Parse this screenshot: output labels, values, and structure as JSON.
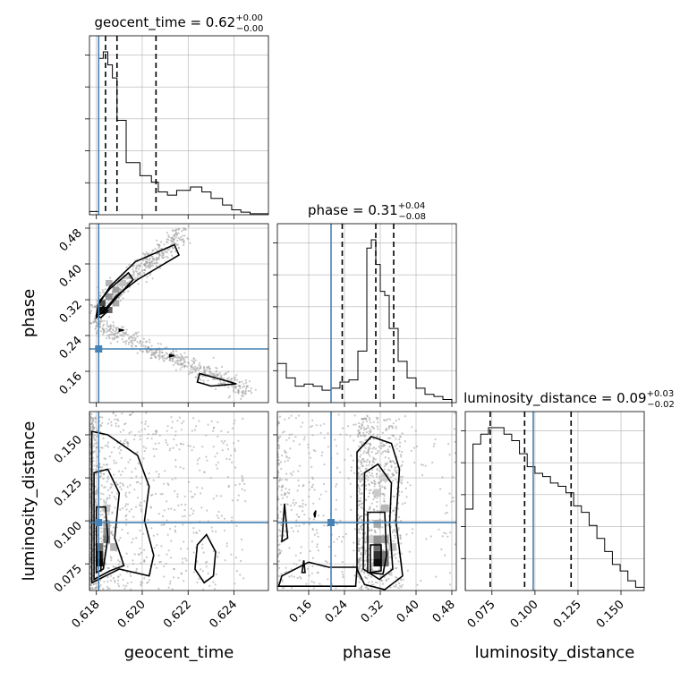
{
  "truth_color": "#4682b4",
  "chart_data": {
    "type": "corner",
    "parameters": [
      "geocent_time",
      "phase",
      "luminosity_distance"
    ],
    "truths": {
      "geocent_time": 0.6181,
      "phase": 0.21,
      "luminosity_distance": 0.099
    },
    "ranges": {
      "geocent_time": [
        0.6177,
        0.6255
      ],
      "phase": [
        0.09,
        0.49
      ],
      "luminosity_distance": [
        0.0595,
        0.1635
      ]
    },
    "ticks": {
      "geocent_time": [
        "0.618",
        "0.620",
        "0.622",
        "0.624"
      ],
      "phase": [
        "0.16",
        "0.24",
        "0.32",
        "0.40",
        "0.48"
      ],
      "luminosity_distance": [
        "0.075",
        "0.100",
        "0.125",
        "0.150"
      ]
    },
    "titles": [
      {
        "param": "geocent_time",
        "label": "geocent_time = 0.62",
        "plus": "+0.00",
        "minus": "−0.00"
      },
      {
        "param": "phase",
        "label": "phase = 0.31",
        "plus": "+0.04",
        "minus": "−0.08"
      },
      {
        "param": "luminosity_distance",
        "label": "luminosity_distance = 0.09",
        "plus": "+0.03",
        "minus": "−0.02"
      }
    ],
    "quantiles": {
      "geocent_time": [
        0.6184,
        0.6189,
        0.6206
      ],
      "phase": [
        0.235,
        0.31,
        0.35
      ],
      "luminosity_distance": [
        0.074,
        0.094,
        0.121
      ]
    },
    "histograms": {
      "geocent_time": {
        "edges": [
          0.6177,
          0.6181,
          0.6183,
          0.6185,
          0.6187,
          0.6189,
          0.6193,
          0.6199,
          0.6204,
          0.6207,
          0.6211,
          0.6215,
          0.6221,
          0.6226,
          0.623,
          0.6235,
          0.6239,
          0.6243,
          0.6247,
          0.6255
        ],
        "counts": [
          1.0,
          48.0,
          50.0,
          46.0,
          42.0,
          29.0,
          16.0,
          12.0,
          10.0,
          7.0,
          6.0,
          7.5,
          8.5,
          7.0,
          5.0,
          3.0,
          1.5,
          0.8,
          0.3
        ]
      },
      "phase": {
        "edges": [
          0.09,
          0.11,
          0.13,
          0.15,
          0.17,
          0.19,
          0.21,
          0.23,
          0.25,
          0.27,
          0.29,
          0.3,
          0.31,
          0.32,
          0.33,
          0.34,
          0.36,
          0.38,
          0.4,
          0.42,
          0.44,
          0.46,
          0.48
        ],
        "counts": [
          19,
          12,
          8,
          9,
          8,
          6,
          7,
          10,
          11,
          25,
          75,
          79,
          67,
          54,
          52,
          36,
          20,
          12,
          7,
          4,
          3,
          1.5
        ]
      },
      "luminosity_distance": {
        "edges": [
          0.0595,
          0.064,
          0.0685,
          0.073,
          0.0775,
          0.082,
          0.0865,
          0.091,
          0.0955,
          0.1,
          0.1045,
          0.109,
          0.1135,
          0.118,
          0.1225,
          0.127,
          0.1315,
          0.136,
          0.1405,
          0.145,
          0.1495,
          0.154,
          0.1585,
          0.1635
        ],
        "counts": [
          25,
          45,
          48,
          50,
          50,
          48,
          46,
          42,
          38,
          36,
          35,
          33,
          32,
          30,
          26,
          24,
          20,
          16,
          12,
          8,
          6,
          3,
          1
        ]
      }
    },
    "pairs": [
      {
        "x": "geocent_time",
        "y": "phase",
        "density": [
          {
            "x": 0.6181,
            "y": 0.29,
            "w": 0.0003,
            "h": 0.014,
            "v": 0.95
          },
          {
            "x": 0.6181,
            "y": 0.305,
            "w": 0.0003,
            "h": 0.014,
            "v": 0.75
          },
          {
            "x": 0.6184,
            "y": 0.29,
            "w": 0.0003,
            "h": 0.014,
            "v": 0.65
          },
          {
            "x": 0.6184,
            "y": 0.32,
            "w": 0.0003,
            "h": 0.014,
            "v": 0.45
          },
          {
            "x": 0.6187,
            "y": 0.335,
            "w": 0.0003,
            "h": 0.014,
            "v": 0.4
          },
          {
            "x": 0.6187,
            "y": 0.305,
            "w": 0.0003,
            "h": 0.014,
            "v": 0.35
          },
          {
            "x": 0.619,
            "y": 0.35,
            "w": 0.0003,
            "h": 0.014,
            "v": 0.25
          },
          {
            "x": 0.6184,
            "y": 0.35,
            "w": 0.0003,
            "h": 0.014,
            "v": 0.3
          }
        ],
        "contours": [
          [
            [
              0.618,
              0.28
            ],
            [
              0.6181,
              0.31
            ],
            [
              0.6186,
              0.35
            ],
            [
              0.6197,
              0.405
            ],
            [
              0.6214,
              0.443
            ],
            [
              0.6216,
              0.42
            ],
            [
              0.6198,
              0.365
            ],
            [
              0.6189,
              0.33
            ],
            [
              0.6184,
              0.3
            ],
            [
              0.618,
              0.28
            ]
          ],
          [
            [
              0.618,
              0.285
            ],
            [
              0.6181,
              0.315
            ],
            [
              0.6186,
              0.345
            ],
            [
              0.6194,
              0.38
            ],
            [
              0.6196,
              0.365
            ],
            [
              0.6188,
              0.32
            ],
            [
              0.6183,
              0.29
            ],
            [
              0.618,
              0.285
            ]
          ],
          [
            [
              0.618,
              0.285
            ],
            [
              0.6183,
              0.305
            ],
            [
              0.6185,
              0.295
            ],
            [
              0.6182,
              0.28
            ],
            [
              0.618,
              0.285
            ]
          ],
          [
            [
              0.619,
              0.254
            ],
            [
              0.6192,
              0.252
            ],
            [
              0.619,
              0.25
            ],
            [
              0.619,
              0.254
            ]
          ],
          [
            [
              0.6212,
              0.197
            ],
            [
              0.6214,
              0.195
            ],
            [
              0.6212,
              0.193
            ],
            [
              0.6212,
              0.197
            ]
          ],
          [
            [
              0.6225,
              0.155
            ],
            [
              0.6235,
              0.141
            ],
            [
              0.6241,
              0.132
            ],
            [
              0.623,
              0.127
            ],
            [
              0.6224,
              0.136
            ],
            [
              0.6225,
              0.155
            ]
          ]
        ],
        "scatter": {
          "seed": 11,
          "count": 950,
          "bands": [
            {
              "x0": 0.6177,
              "x1": 0.6247,
              "y0": 0.27,
              "y1": 0.115,
              "sx": 0.00012,
              "sy": 0.01,
              "weight": 0.55
            },
            {
              "x0": 0.618,
              "x1": 0.6218,
              "y0": 0.3,
              "y1": 0.47,
              "sx": 0.0002,
              "sy": 0.012,
              "weight": 0.45
            }
          ]
        }
      },
      {
        "x": "geocent_time",
        "y": "luminosity_distance",
        "density": [
          {
            "x": 0.618,
            "y": 0.0735,
            "w": 0.0003,
            "h": 0.0045,
            "v": 1.0
          },
          {
            "x": 0.618,
            "y": 0.078,
            "w": 0.0003,
            "h": 0.0045,
            "v": 0.85
          },
          {
            "x": 0.618,
            "y": 0.0825,
            "w": 0.0003,
            "h": 0.0045,
            "v": 0.6
          },
          {
            "x": 0.6183,
            "y": 0.087,
            "w": 0.0003,
            "h": 0.0045,
            "v": 0.55
          },
          {
            "x": 0.6183,
            "y": 0.0915,
            "w": 0.0003,
            "h": 0.0045,
            "v": 0.45
          },
          {
            "x": 0.6183,
            "y": 0.096,
            "w": 0.0003,
            "h": 0.0045,
            "v": 0.35
          },
          {
            "x": 0.6183,
            "y": 0.105,
            "w": 0.0003,
            "h": 0.0045,
            "v": 0.25
          },
          {
            "x": 0.6186,
            "y": 0.0825,
            "w": 0.0003,
            "h": 0.0045,
            "v": 0.3
          }
        ],
        "contours": [
          [
            [
              0.6178,
              0.064
            ],
            [
              0.6178,
              0.152
            ],
            [
              0.6185,
              0.15
            ],
            [
              0.6198,
              0.138
            ],
            [
              0.6203,
              0.12
            ],
            [
              0.6201,
              0.1
            ],
            [
              0.6205,
              0.08
            ],
            [
              0.6203,
              0.068
            ],
            [
              0.619,
              0.072
            ],
            [
              0.6181,
              0.066
            ],
            [
              0.6178,
              0.064
            ]
          ],
          [
            [
              0.6179,
              0.066
            ],
            [
              0.6179,
              0.128
            ],
            [
              0.6185,
              0.13
            ],
            [
              0.619,
              0.116
            ],
            [
              0.6188,
              0.09
            ],
            [
              0.6192,
              0.074
            ],
            [
              0.6186,
              0.071
            ],
            [
              0.6179,
              0.066
            ]
          ],
          [
            [
              0.618,
              0.07
            ],
            [
              0.618,
              0.108
            ],
            [
              0.6184,
              0.108
            ],
            [
              0.6185,
              0.09
            ],
            [
              0.6183,
              0.072
            ],
            [
              0.618,
              0.07
            ]
          ],
          [
            [
              0.618,
              0.07
            ],
            [
              0.618,
              0.082
            ],
            [
              0.6182,
              0.082
            ],
            [
              0.6182,
              0.071
            ],
            [
              0.618,
              0.07
            ]
          ],
          [
            [
              0.6224,
              0.086
            ],
            [
              0.6223,
              0.072
            ],
            [
              0.6227,
              0.064
            ],
            [
              0.6231,
              0.068
            ],
            [
              0.6232,
              0.082
            ],
            [
              0.6228,
              0.092
            ],
            [
              0.6224,
              0.086
            ]
          ]
        ],
        "scatter": {
          "seed": 23,
          "count": 1050,
          "bands": [
            {
              "x0": 0.6177,
              "x1": 0.6245,
              "y0": 0.06,
              "y1": 0.163,
              "sx": 0.0,
              "sy": 0.0,
              "weight": 1.0,
              "uniform": true,
              "taper": 3.2
            }
          ]
        }
      },
      {
        "x": "phase",
        "y": "luminosity_distance",
        "density": [
          {
            "x": 0.305,
            "y": 0.0735,
            "w": 0.017,
            "h": 0.0045,
            "v": 1.0
          },
          {
            "x": 0.305,
            "y": 0.078,
            "w": 0.017,
            "h": 0.0045,
            "v": 0.85
          },
          {
            "x": 0.322,
            "y": 0.0735,
            "w": 0.017,
            "h": 0.0045,
            "v": 0.6
          },
          {
            "x": 0.322,
            "y": 0.078,
            "w": 0.017,
            "h": 0.0045,
            "v": 0.55
          },
          {
            "x": 0.305,
            "y": 0.0825,
            "w": 0.017,
            "h": 0.0045,
            "v": 0.6
          },
          {
            "x": 0.305,
            "y": 0.087,
            "w": 0.017,
            "h": 0.0045,
            "v": 0.45
          },
          {
            "x": 0.322,
            "y": 0.087,
            "w": 0.017,
            "h": 0.0045,
            "v": 0.4
          },
          {
            "x": 0.305,
            "y": 0.096,
            "w": 0.017,
            "h": 0.0045,
            "v": 0.35
          },
          {
            "x": 0.322,
            "y": 0.105,
            "w": 0.017,
            "h": 0.0045,
            "v": 0.3
          },
          {
            "x": 0.305,
            "y": 0.114,
            "w": 0.017,
            "h": 0.0045,
            "v": 0.22
          },
          {
            "x": 0.322,
            "y": 0.123,
            "w": 0.017,
            "h": 0.0045,
            "v": 0.2
          },
          {
            "x": 0.339,
            "y": 0.0825,
            "w": 0.017,
            "h": 0.0045,
            "v": 0.25
          },
          {
            "x": 0.288,
            "y": 0.087,
            "w": 0.017,
            "h": 0.0045,
            "v": 0.2
          }
        ],
        "contours": [
          [
            [
              0.268,
              0.072
            ],
            [
              0.268,
              0.14
            ],
            [
              0.3,
              0.149
            ],
            [
              0.345,
              0.145
            ],
            [
              0.363,
              0.13
            ],
            [
              0.355,
              0.1
            ],
            [
              0.37,
              0.068
            ],
            [
              0.33,
              0.06
            ],
            [
              0.285,
              0.063
            ],
            [
              0.268,
              0.072
            ]
          ],
          [
            [
              0.282,
              0.072
            ],
            [
              0.285,
              0.128
            ],
            [
              0.315,
              0.133
            ],
            [
              0.345,
              0.122
            ],
            [
              0.341,
              0.098
            ],
            [
              0.348,
              0.072
            ],
            [
              0.318,
              0.066
            ],
            [
              0.282,
              0.072
            ]
          ],
          [
            [
              0.292,
              0.07
            ],
            [
              0.292,
              0.105
            ],
            [
              0.33,
              0.105
            ],
            [
              0.334,
              0.08
            ],
            [
              0.326,
              0.069
            ],
            [
              0.292,
              0.07
            ]
          ],
          [
            [
              0.298,
              0.07
            ],
            [
              0.298,
              0.086
            ],
            [
              0.322,
              0.086
            ],
            [
              0.322,
              0.071
            ],
            [
              0.298,
              0.07
            ]
          ],
          [
            [
              0.093,
              0.062
            ],
            [
              0.1,
              0.068
            ],
            [
              0.16,
              0.076
            ],
            [
              0.205,
              0.073
            ],
            [
              0.268,
              0.073
            ],
            [
              0.265,
              0.062
            ],
            [
              0.093,
              0.062
            ]
          ],
          [
            [
              0.1,
              0.088
            ],
            [
              0.106,
              0.11
            ],
            [
              0.113,
              0.09
            ],
            [
              0.1,
              0.088
            ]
          ],
          [
            [
              0.145,
              0.07
            ],
            [
              0.149,
              0.077
            ],
            [
              0.152,
              0.07
            ],
            [
              0.145,
              0.07
            ]
          ],
          [
            [
              0.172,
              0.104
            ],
            [
              0.176,
              0.106
            ],
            [
              0.174,
              0.102
            ],
            [
              0.172,
              0.104
            ]
          ]
        ],
        "scatter": {
          "seed": 37,
          "count": 1150,
          "bands": [
            {
              "x0": 0.27,
              "x1": 0.37,
              "y0": 0.06,
              "y1": 0.16,
              "sx": 0.0,
              "sy": 0.0,
              "weight": 0.6,
              "uniform": true,
              "taper": 1.6
            },
            {
              "x0": 0.09,
              "x1": 0.49,
              "y0": 0.06,
              "y1": 0.163,
              "sx": 0.0,
              "sy": 0.0,
              "weight": 0.4,
              "uniform": true,
              "taper": 2.2
            }
          ]
        }
      }
    ]
  }
}
